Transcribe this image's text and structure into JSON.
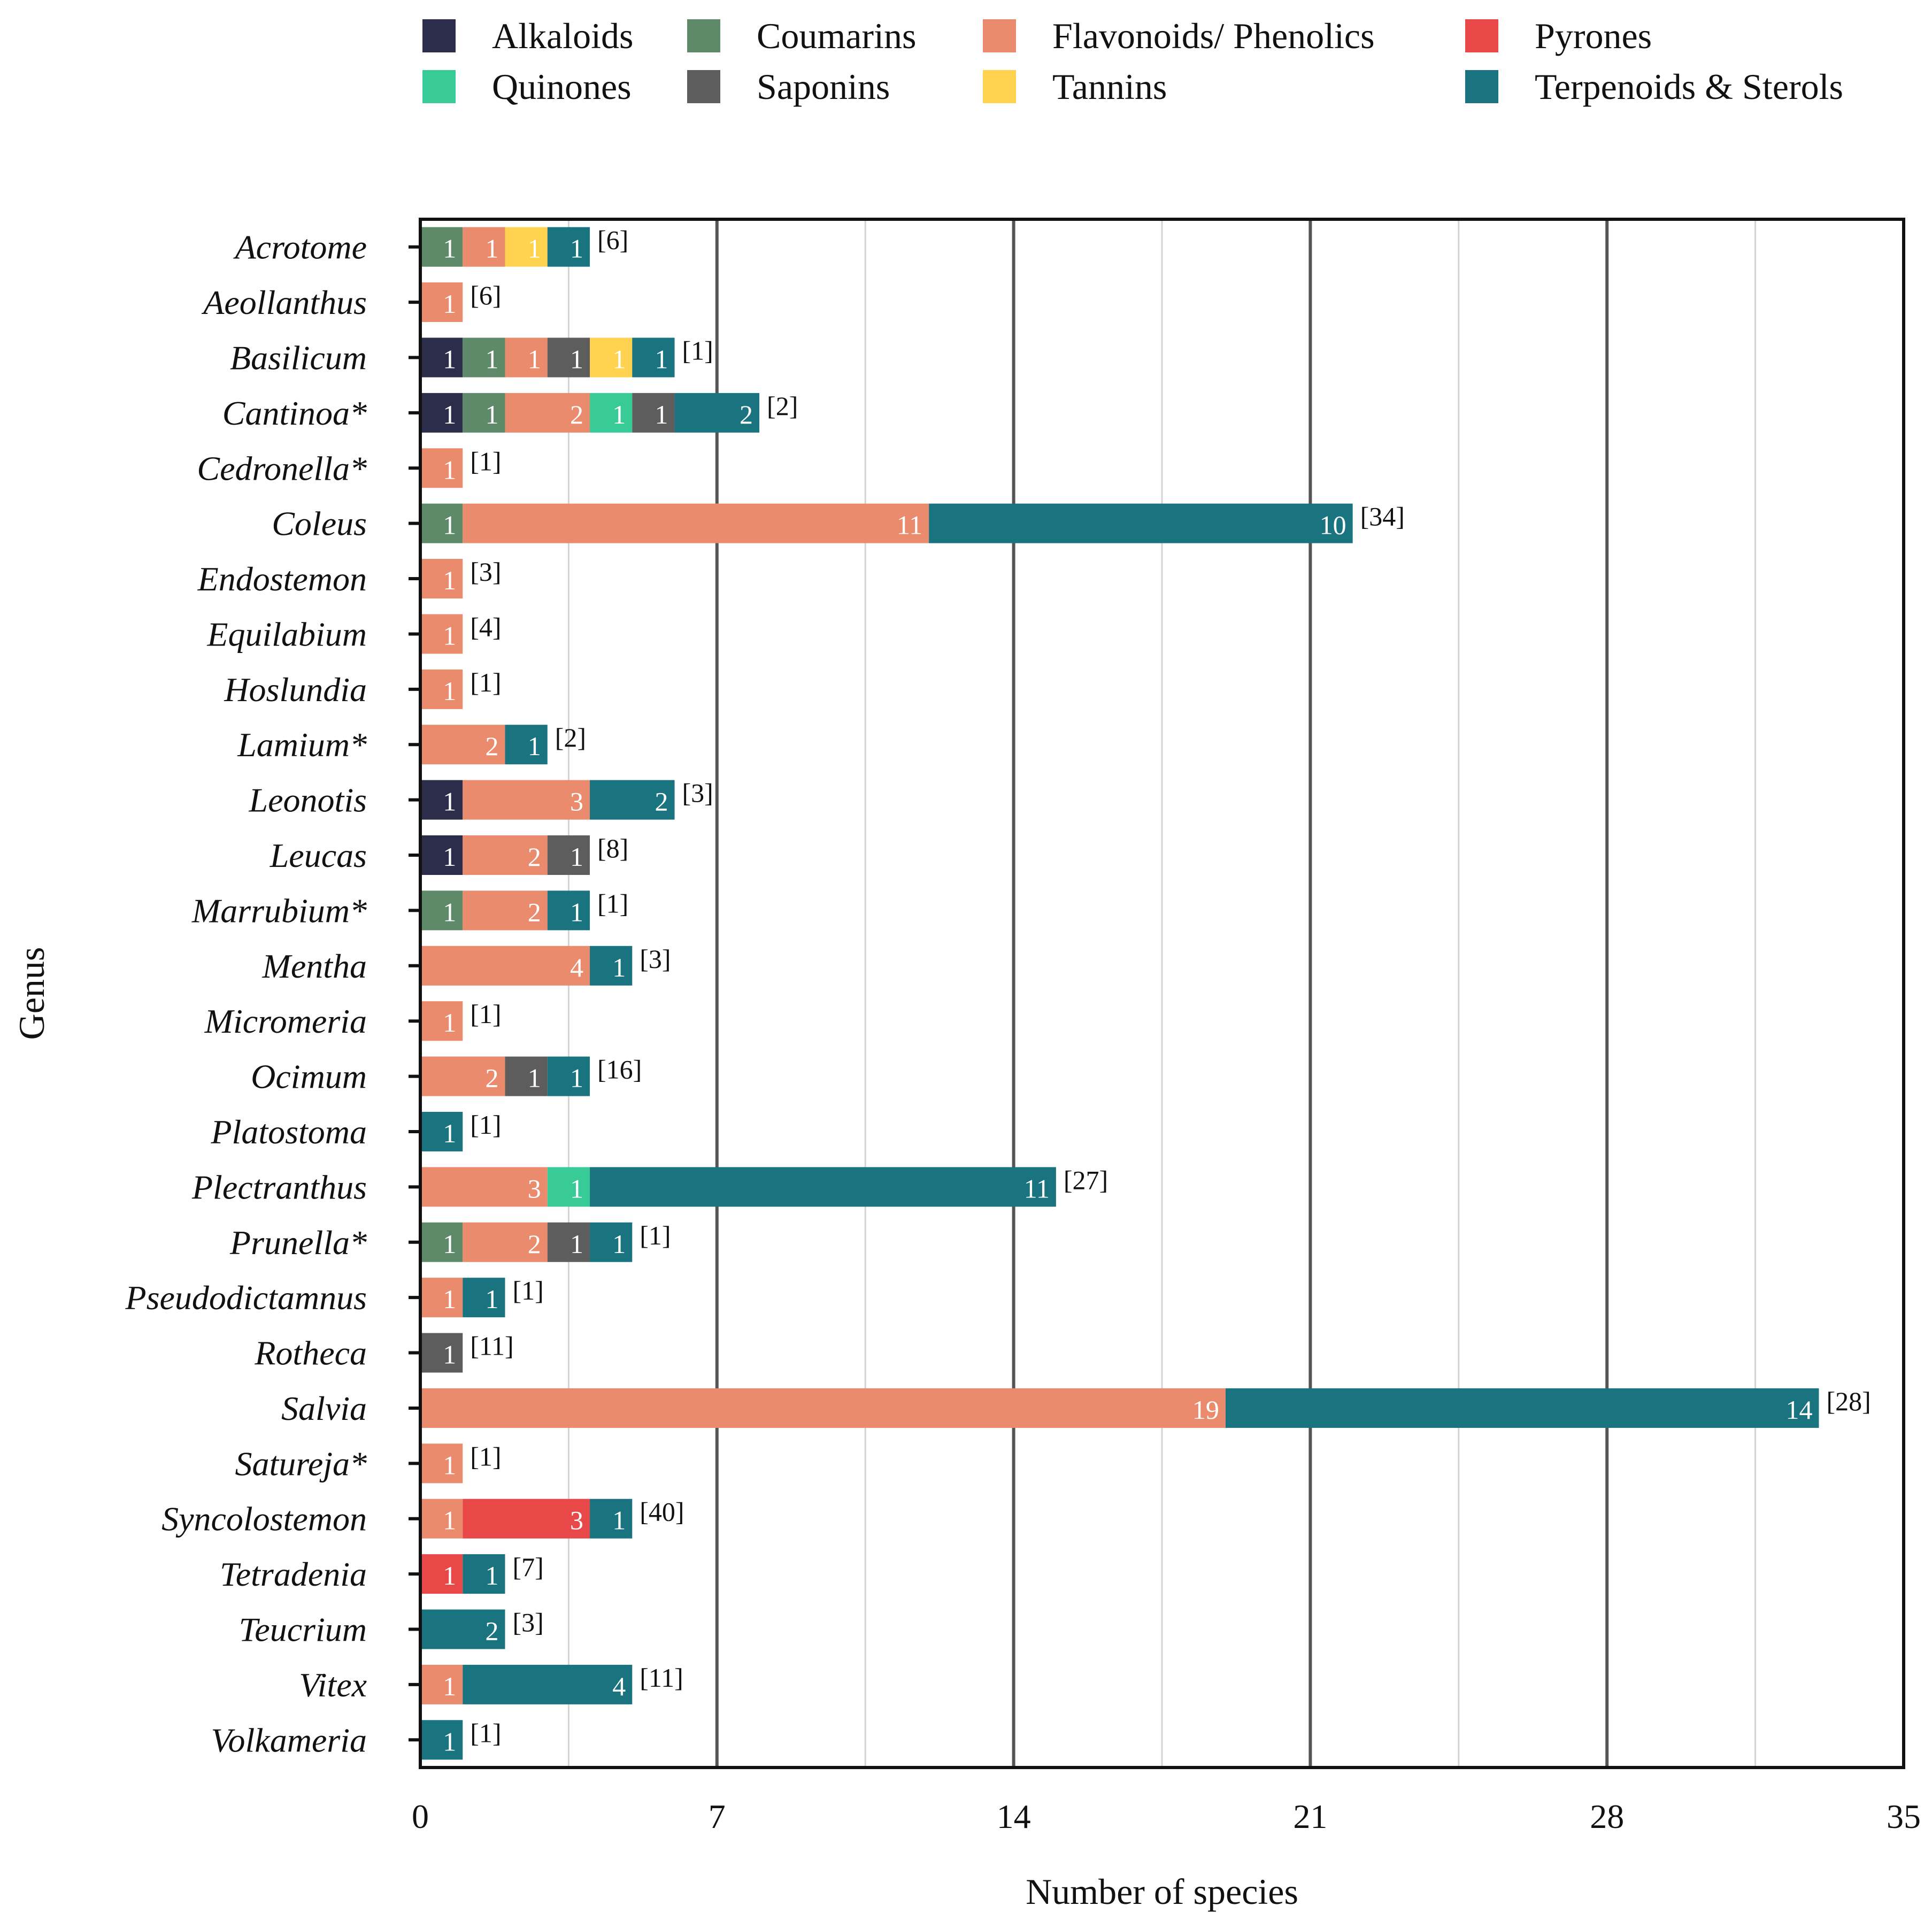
{
  "chart_data": {
    "type": "bar",
    "orientation": "horizontal",
    "stacked": true,
    "xlabel": "Number of species",
    "ylabel": "Genus",
    "xlim": [
      0,
      35
    ],
    "xticks": [
      0,
      7,
      14,
      21,
      28,
      35
    ],
    "minor_gridlines": [
      3.5,
      10.5,
      17.5,
      24.5,
      31.5
    ],
    "grid": true,
    "legend_position": "top",
    "series": [
      {
        "name": "Alkaloids",
        "color": "#2b2d4a"
      },
      {
        "name": "Coumarins",
        "color": "#5e8a69"
      },
      {
        "name": "Flavonoids/ Phenolics",
        "color": "#eb8b6d"
      },
      {
        "name": "Pyrones",
        "color": "#e94849"
      },
      {
        "name": "Quinones",
        "color": "#38cb97"
      },
      {
        "name": "Saponins",
        "color": "#5d5d5d"
      },
      {
        "name": "Tannins",
        "color": "#ffd24f"
      },
      {
        "name": "Terpenoids & Sterols",
        "color": "#1a7480"
      }
    ],
    "categories": [
      {
        "genus": "Acrotome",
        "ref": "[6]",
        "segments": [
          {
            "series": "Coumarins",
            "value": 1
          },
          {
            "series": "Flavonoids/ Phenolics",
            "value": 1
          },
          {
            "series": "Tannins",
            "value": 1
          },
          {
            "series": "Terpenoids & Sterols",
            "value": 1
          }
        ]
      },
      {
        "genus": "Aeollanthus",
        "ref": "[6]",
        "segments": [
          {
            "series": "Flavonoids/ Phenolics",
            "value": 1
          }
        ]
      },
      {
        "genus": "Basilicum",
        "ref": "[1]",
        "segments": [
          {
            "series": "Alkaloids",
            "value": 1
          },
          {
            "series": "Coumarins",
            "value": 1
          },
          {
            "series": "Flavonoids/ Phenolics",
            "value": 1
          },
          {
            "series": "Saponins",
            "value": 1
          },
          {
            "series": "Tannins",
            "value": 1
          },
          {
            "series": "Terpenoids & Sterols",
            "value": 1
          }
        ]
      },
      {
        "genus": "Cantinoa*",
        "ref": "[2]",
        "segments": [
          {
            "series": "Alkaloids",
            "value": 1
          },
          {
            "series": "Coumarins",
            "value": 1
          },
          {
            "series": "Flavonoids/ Phenolics",
            "value": 2
          },
          {
            "series": "Quinones",
            "value": 1
          },
          {
            "series": "Saponins",
            "value": 1
          },
          {
            "series": "Terpenoids & Sterols",
            "value": 2
          }
        ]
      },
      {
        "genus": "Cedronella*",
        "ref": "[1]",
        "segments": [
          {
            "series": "Flavonoids/ Phenolics",
            "value": 1
          }
        ]
      },
      {
        "genus": "Coleus",
        "ref": "[34]",
        "segments": [
          {
            "series": "Coumarins",
            "value": 1
          },
          {
            "series": "Flavonoids/ Phenolics",
            "value": 11
          },
          {
            "series": "Terpenoids & Sterols",
            "value": 10
          }
        ]
      },
      {
        "genus": "Endostemon",
        "ref": "[3]",
        "segments": [
          {
            "series": "Flavonoids/ Phenolics",
            "value": 1
          }
        ]
      },
      {
        "genus": "Equilabium",
        "ref": "[4]",
        "segments": [
          {
            "series": "Flavonoids/ Phenolics",
            "value": 1
          }
        ]
      },
      {
        "genus": "Hoslundia",
        "ref": "[1]",
        "segments": [
          {
            "series": "Flavonoids/ Phenolics",
            "value": 1
          }
        ]
      },
      {
        "genus": "Lamium*",
        "ref": "[2]",
        "segments": [
          {
            "series": "Flavonoids/ Phenolics",
            "value": 2
          },
          {
            "series": "Terpenoids & Sterols",
            "value": 1
          }
        ]
      },
      {
        "genus": "Leonotis",
        "ref": "[3]",
        "segments": [
          {
            "series": "Alkaloids",
            "value": 1
          },
          {
            "series": "Flavonoids/ Phenolics",
            "value": 3
          },
          {
            "series": "Terpenoids & Sterols",
            "value": 2
          }
        ]
      },
      {
        "genus": "Leucas",
        "ref": "[8]",
        "segments": [
          {
            "series": "Alkaloids",
            "value": 1
          },
          {
            "series": "Flavonoids/ Phenolics",
            "value": 2
          },
          {
            "series": "Saponins",
            "value": 1
          }
        ]
      },
      {
        "genus": "Marrubium*",
        "ref": "[1]",
        "segments": [
          {
            "series": "Coumarins",
            "value": 1
          },
          {
            "series": "Flavonoids/ Phenolics",
            "value": 2
          },
          {
            "series": "Terpenoids & Sterols",
            "value": 1
          }
        ]
      },
      {
        "genus": "Mentha",
        "ref": "[3]",
        "segments": [
          {
            "series": "Flavonoids/ Phenolics",
            "value": 4
          },
          {
            "series": "Terpenoids & Sterols",
            "value": 1
          }
        ]
      },
      {
        "genus": "Micromeria",
        "ref": "[1]",
        "segments": [
          {
            "series": "Flavonoids/ Phenolics",
            "value": 1
          }
        ]
      },
      {
        "genus": "Ocimum",
        "ref": "[16]",
        "segments": [
          {
            "series": "Flavonoids/ Phenolics",
            "value": 2
          },
          {
            "series": "Saponins",
            "value": 1
          },
          {
            "series": "Terpenoids & Sterols",
            "value": 1
          }
        ]
      },
      {
        "genus": "Platostoma",
        "ref": "[1]",
        "segments": [
          {
            "series": "Terpenoids & Sterols",
            "value": 1
          }
        ]
      },
      {
        "genus": "Plectranthus",
        "ref": "[27]",
        "segments": [
          {
            "series": "Flavonoids/ Phenolics",
            "value": 3
          },
          {
            "series": "Quinones",
            "value": 1
          },
          {
            "series": "Terpenoids & Sterols",
            "value": 11
          }
        ]
      },
      {
        "genus": "Prunella*",
        "ref": "[1]",
        "segments": [
          {
            "series": "Coumarins",
            "value": 1
          },
          {
            "series": "Flavonoids/ Phenolics",
            "value": 2
          },
          {
            "series": "Saponins",
            "value": 1
          },
          {
            "series": "Terpenoids & Sterols",
            "value": 1
          }
        ]
      },
      {
        "genus": "Pseudodictamnus",
        "ref": "[1]",
        "segments": [
          {
            "series": "Flavonoids/ Phenolics",
            "value": 1
          },
          {
            "series": "Terpenoids & Sterols",
            "value": 1
          }
        ]
      },
      {
        "genus": "Rotheca",
        "ref": "[11]",
        "segments": [
          {
            "series": "Saponins",
            "value": 1
          }
        ]
      },
      {
        "genus": "Salvia",
        "ref": "[28]",
        "segments": [
          {
            "series": "Flavonoids/ Phenolics",
            "value": 19
          },
          {
            "series": "Terpenoids & Sterols",
            "value": 14
          }
        ]
      },
      {
        "genus": "Satureja*",
        "ref": "[1]",
        "segments": [
          {
            "series": "Flavonoids/ Phenolics",
            "value": 1
          }
        ]
      },
      {
        "genus": "Syncolostemon",
        "ref": "[40]",
        "segments": [
          {
            "series": "Flavonoids/ Phenolics",
            "value": 1
          },
          {
            "series": "Pyrones",
            "value": 3
          },
          {
            "series": "Terpenoids & Sterols",
            "value": 1
          }
        ]
      },
      {
        "genus": "Tetradenia",
        "ref": "[7]",
        "segments": [
          {
            "series": "Pyrones",
            "value": 1
          },
          {
            "series": "Terpenoids & Sterols",
            "value": 1
          }
        ]
      },
      {
        "genus": "Teucrium",
        "ref": "[3]",
        "segments": [
          {
            "series": "Terpenoids & Sterols",
            "value": 2
          }
        ]
      },
      {
        "genus": "Vitex",
        "ref": "[11]",
        "segments": [
          {
            "series": "Flavonoids/ Phenolics",
            "value": 1
          },
          {
            "series": "Terpenoids & Sterols",
            "value": 4
          }
        ]
      },
      {
        "genus": "Volkameria",
        "ref": "[1]",
        "segments": [
          {
            "series": "Terpenoids & Sterols",
            "value": 1
          }
        ]
      }
    ]
  }
}
